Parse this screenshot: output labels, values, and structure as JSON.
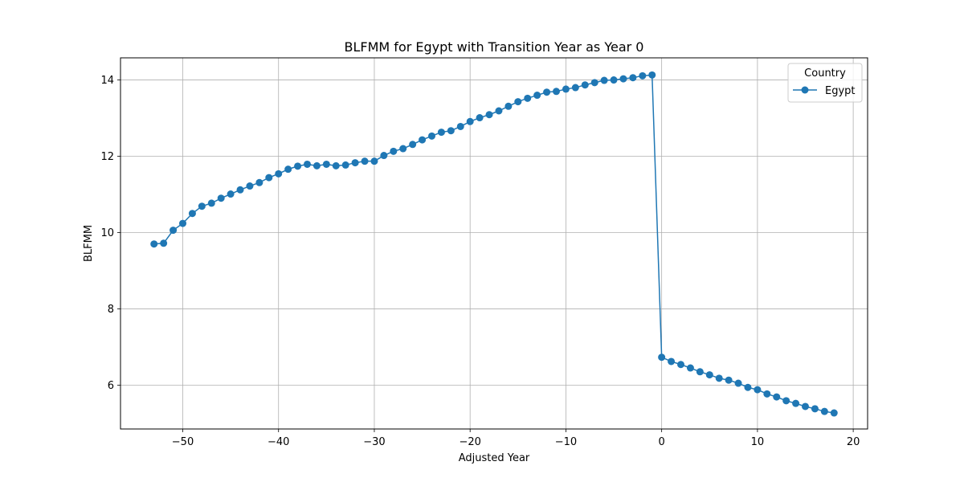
{
  "chart_data": {
    "type": "line",
    "title": "BLFMM for Egypt with Transition Year as Year 0",
    "xlabel": "Adjusted Year",
    "ylabel": "BLFMM",
    "xlim": [
      -56.5,
      21.5
    ],
    "ylim": [
      4.85,
      14.58
    ],
    "xticks": [
      -50,
      -40,
      -30,
      -20,
      -10,
      0,
      10,
      20
    ],
    "xtick_labels": [
      "−50",
      "−40",
      "−30",
      "−20",
      "−10",
      "0",
      "10",
      "20"
    ],
    "yticks": [
      6,
      8,
      10,
      12,
      14
    ],
    "ytick_labels": [
      "6",
      "8",
      "10",
      "12",
      "14"
    ],
    "grid": true,
    "legend": {
      "title": "Country",
      "position": "top-right"
    },
    "colors": {
      "series": "#1f77b4",
      "grid": "#b0b0b0"
    },
    "series": [
      {
        "name": "Egypt",
        "x": [
          -53,
          -52,
          -51,
          -50,
          -49,
          -48,
          -47,
          -46,
          -45,
          -44,
          -43,
          -42,
          -41,
          -40,
          -39,
          -38,
          -37,
          -36,
          -35,
          -34,
          -33,
          -32,
          -31,
          -30,
          -29,
          -28,
          -27,
          -26,
          -25,
          -24,
          -23,
          -22,
          -21,
          -20,
          -19,
          -18,
          -17,
          -16,
          -15,
          -14,
          -13,
          -12,
          -11,
          -10,
          -9,
          -8,
          -7,
          -6,
          -5,
          -4,
          -3,
          -2,
          -1,
          0,
          1,
          2,
          3,
          4,
          5,
          6,
          7,
          8,
          9,
          10,
          11,
          12,
          13,
          14,
          15,
          16,
          17,
          18
        ],
        "y": [
          9.7,
          9.72,
          10.06,
          10.24,
          10.5,
          10.69,
          10.77,
          10.9,
          11.01,
          11.12,
          11.22,
          11.31,
          11.44,
          11.54,
          11.66,
          11.74,
          11.79,
          11.75,
          11.79,
          11.75,
          11.77,
          11.83,
          11.87,
          11.87,
          12.02,
          12.13,
          12.2,
          12.31,
          12.43,
          12.53,
          12.63,
          12.67,
          12.78,
          12.91,
          13.01,
          13.09,
          13.19,
          13.31,
          13.43,
          13.52,
          13.6,
          13.68,
          13.7,
          13.76,
          13.8,
          13.87,
          13.93,
          13.99,
          14.0,
          14.03,
          14.06,
          14.11,
          14.13,
          6.73,
          6.62,
          6.54,
          6.45,
          6.35,
          6.27,
          6.18,
          6.13,
          6.05,
          5.94,
          5.88,
          5.77,
          5.69,
          5.59,
          5.52,
          5.44,
          5.38,
          5.31,
          5.27
        ]
      }
    ]
  }
}
